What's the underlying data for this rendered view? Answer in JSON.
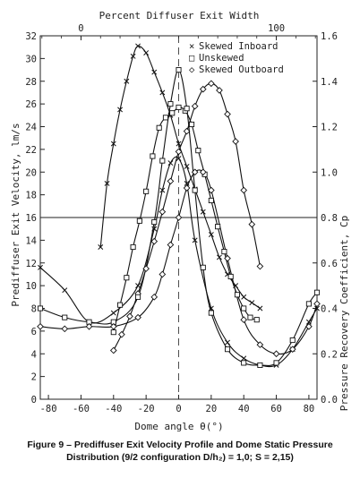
{
  "chart_data": {
    "type": "line",
    "top_axis": {
      "label": "Percent Diffuser Exit Width",
      "ticks": [
        "0",
        "100"
      ]
    },
    "x_axis": {
      "label": "Dome angle θ(°)",
      "ticks": [
        -80,
        -60,
        -40,
        -20,
        0,
        20,
        40,
        60,
        80
      ],
      "range": [
        -85,
        85
      ]
    },
    "y_left": {
      "label": "Prediffuser Exit Velocity, lm/s",
      "ticks": [
        0,
        2,
        4,
        6,
        8,
        10,
        12,
        14,
        16,
        18,
        20,
        22,
        24,
        26,
        28,
        30,
        32
      ],
      "range": [
        0,
        32
      ]
    },
    "y_right": {
      "label": "Pressure Recovery Coefficient, Cp",
      "ticks": [
        "0.0",
        "0.2",
        "0.4",
        "0.6",
        "0.8",
        "1.0",
        "1.2",
        "1.4",
        "1.6"
      ],
      "range": [
        0,
        1.6
      ]
    },
    "reference_line": {
      "y": 16
    },
    "legend": [
      {
        "symbol": "×",
        "label": "Skewed Inboard"
      },
      {
        "symbol": "□",
        "label": "Unskewed"
      },
      {
        "symbol": "◇",
        "label": "Skewed Outboard"
      }
    ],
    "velocity_series": [
      {
        "marker": "x",
        "x": [
          -48,
          -44,
          -40,
          -36,
          -32,
          -28,
          -25,
          -20,
          -15,
          -10,
          -5,
          0,
          5,
          10,
          15,
          20,
          25,
          30,
          35,
          40,
          45,
          50
        ],
        "y": [
          13.4,
          19,
          22.5,
          25.5,
          28,
          30.2,
          31.1,
          30.5,
          28.8,
          27,
          25,
          22.5,
          20.5,
          18.5,
          16.5,
          14.5,
          12.5,
          11,
          10,
          9,
          8.5,
          8
        ]
      },
      {
        "marker": "square",
        "x": [
          -40,
          -36,
          -32,
          -28,
          -24,
          -20,
          -16,
          -12,
          -8,
          -4,
          0,
          4,
          8,
          12,
          16,
          20,
          24,
          28,
          32,
          36,
          40,
          44,
          48
        ],
        "y": [
          5.9,
          8.3,
          10.7,
          13.4,
          15.7,
          18.3,
          21.4,
          23.9,
          24.8,
          25.2,
          25.7,
          25.4,
          24.2,
          21.9,
          19.8,
          17.5,
          15.2,
          13,
          10.8,
          9.2,
          8,
          7.2,
          7
        ]
      },
      {
        "marker": "diamond",
        "x": [
          -40,
          -35,
          -30,
          -25,
          -20,
          -15,
          -10,
          -5,
          0,
          5,
          10,
          15,
          20,
          25,
          30,
          35,
          40,
          45,
          50
        ],
        "y": [
          4.3,
          5.7,
          7.3,
          9.3,
          11.5,
          13.9,
          16.5,
          19.2,
          21.8,
          23.6,
          25.8,
          27.3,
          27.8,
          27.2,
          25.1,
          22.7,
          18.4,
          15.4,
          11.7
        ]
      }
    ],
    "cp_series": [
      {
        "marker": "x",
        "x": [
          -85,
          -70,
          -55,
          -40,
          -25,
          -15,
          -10,
          -5,
          0,
          5,
          10,
          20,
          30,
          40,
          50,
          60,
          70,
          80,
          85
        ],
        "y": [
          0.58,
          0.48,
          0.34,
          0.38,
          0.5,
          0.75,
          0.92,
          1.04,
          1.06,
          0.95,
          0.7,
          0.4,
          0.25,
          0.18,
          0.15,
          0.15,
          0.22,
          0.34,
          0.4
        ]
      },
      {
        "marker": "square",
        "x": [
          -85,
          -70,
          -55,
          -40,
          -25,
          -15,
          -10,
          -5,
          0,
          5,
          10,
          15,
          20,
          30,
          40,
          50,
          60,
          70,
          80,
          85
        ],
        "y": [
          0.4,
          0.36,
          0.34,
          0.34,
          0.45,
          0.78,
          1.05,
          1.3,
          1.45,
          1.28,
          0.92,
          0.58,
          0.38,
          0.22,
          0.16,
          0.15,
          0.16,
          0.26,
          0.42,
          0.47
        ]
      },
      {
        "marker": "diamond",
        "x": [
          -85,
          -70,
          -55,
          -40,
          -25,
          -15,
          -10,
          -5,
          0,
          5,
          10,
          15,
          20,
          30,
          40,
          50,
          60,
          70,
          80,
          85
        ],
        "y": [
          0.32,
          0.31,
          0.32,
          0.32,
          0.36,
          0.45,
          0.55,
          0.68,
          0.8,
          0.93,
          1.0,
          1.0,
          0.92,
          0.62,
          0.35,
          0.24,
          0.2,
          0.22,
          0.32,
          0.42
        ]
      }
    ]
  },
  "caption": {
    "line1": "Figure 9 – Prediffuser Exit Velocity Profile and Dome Static Pressure",
    "line2": "Distribution (9/2 configuration D/h₂) = 1,0; S = 2,15)"
  }
}
